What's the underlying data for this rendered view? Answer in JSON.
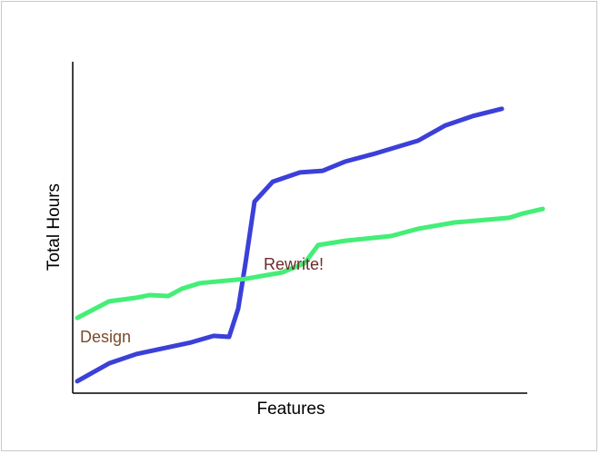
{
  "chart_data": {
    "type": "line",
    "x_label": "Features",
    "y_label": "Total Hours",
    "xlim": [
      0,
      100
    ],
    "ylim": [
      0,
      100
    ],
    "grid": false,
    "series": [
      {
        "color": "#3b40d9",
        "x": [
          1,
          8,
          14,
          26,
          31,
          34.4,
          36.4,
          38,
          40,
          44,
          50,
          55,
          60,
          66,
          76,
          82,
          88,
          94.4
        ],
        "values": [
          3.6,
          9.0,
          11.8,
          15.3,
          17.3,
          17.0,
          25.5,
          39.2,
          57.8,
          63.8,
          66.6,
          67.1,
          69.9,
          72.1,
          76.2,
          80.8,
          83.6,
          85.8
        ]
      },
      {
        "color": "#44ee77",
        "x": [
          1,
          8,
          14,
          17,
          21,
          24,
          28,
          38,
          46,
          51,
          54,
          60,
          70,
          76,
          84,
          96,
          99,
          103.4
        ],
        "values": [
          22.7,
          27.7,
          28.8,
          29.6,
          29.3,
          31.5,
          33.2,
          34.5,
          36.4,
          39.2,
          44.7,
          46.0,
          47.4,
          49.6,
          51.5,
          52.9,
          54.2,
          55.6
        ]
      }
    ],
    "annotations": [
      {
        "text": "Design",
        "color": "#7b4a2b"
      },
      {
        "text": "Rewrite!",
        "color": "#6e2b2b"
      }
    ]
  }
}
